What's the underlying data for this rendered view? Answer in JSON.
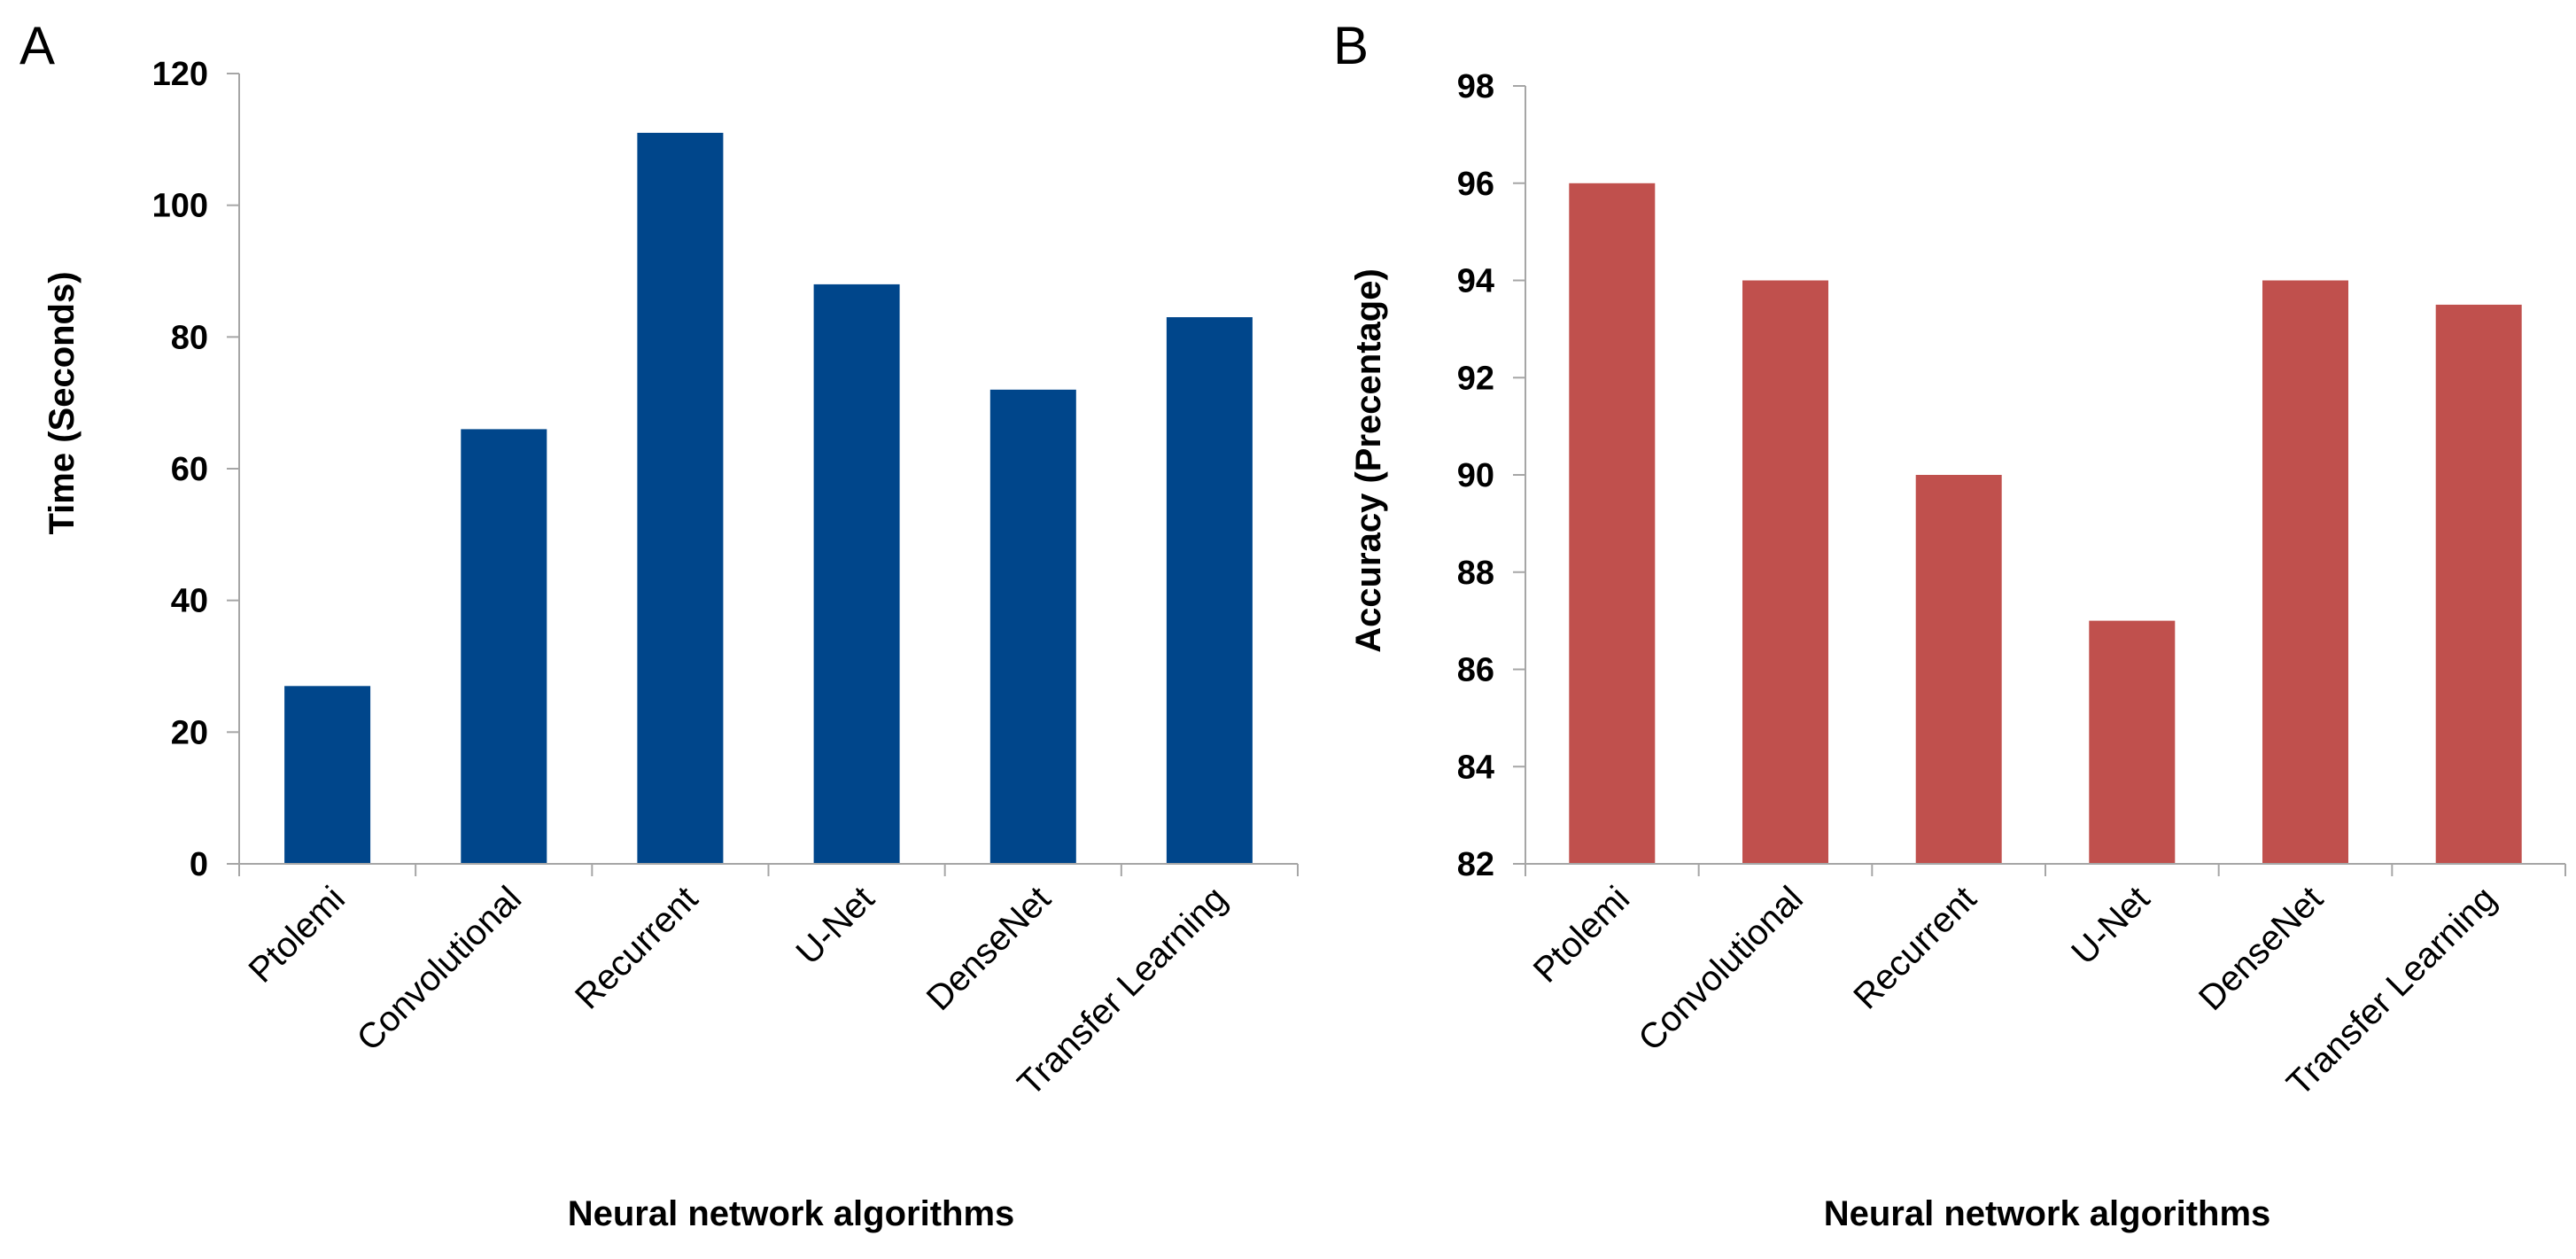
{
  "chart_data": [
    {
      "panel": "A",
      "type": "bar",
      "title": "",
      "xlabel": "Neural network algorithms",
      "ylabel": "Time (Seconds)",
      "categories": [
        "Ptolemi",
        "Convolutional",
        "Recurrent",
        "U-Net",
        "DenseNet",
        "Transfer Learning"
      ],
      "values": [
        27,
        66,
        111,
        88,
        72,
        83
      ],
      "ylim": [
        0,
        120
      ],
      "yticks": [
        0,
        20,
        40,
        60,
        80,
        100,
        120
      ],
      "color": "#00468B",
      "grid": false
    },
    {
      "panel": "B",
      "type": "bar",
      "title": "",
      "xlabel": "Neural network algorithms",
      "ylabel": "Accuracy (Precentage)",
      "categories": [
        "Ptolemi",
        "Convolutional",
        "Recurrent",
        "U-Net",
        "DenseNet",
        "Transfer Learning"
      ],
      "values": [
        96,
        94,
        90,
        87,
        94,
        93.5
      ],
      "ylim": [
        82,
        98
      ],
      "yticks": [
        82,
        84,
        86,
        88,
        90,
        92,
        94,
        96,
        98
      ],
      "color": "#C0504D",
      "grid": false
    }
  ]
}
